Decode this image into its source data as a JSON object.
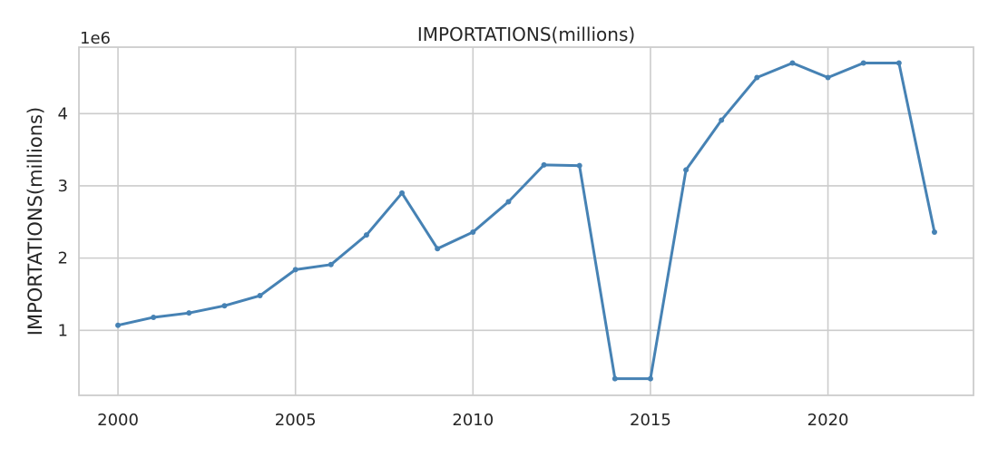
{
  "chart_data": {
    "type": "line",
    "title": "IMPORTATIONS(millions)",
    "xlabel": "",
    "ylabel": "IMPORTATIONS(millions)",
    "y_offset_label": "1e6",
    "y_scale_factor": 1000000,
    "xlim": [
      1998.9,
      2024.1
    ],
    "ylim": [
      100000,
      4920000
    ],
    "xticks": [
      2000,
      2005,
      2010,
      2015,
      2020
    ],
    "yticks": [
      1000000,
      2000000,
      3000000,
      4000000
    ],
    "grid": true,
    "line_color": "#4682b4",
    "series": [
      {
        "x": [
          2000,
          2001,
          2002,
          2003,
          2004,
          2005,
          2006,
          2007,
          2008,
          2009,
          2010,
          2011,
          2012,
          2013,
          2014,
          2015,
          2016,
          2017,
          2018,
          2019,
          2020,
          2021,
          2022,
          2023
        ],
        "values": [
          1070000,
          1180000,
          1240000,
          1340000,
          1480000,
          1840000,
          1910000,
          2320000,
          2900000,
          2130000,
          2360000,
          2780000,
          3290000,
          3280000,
          330000,
          330000,
          3220000,
          3910000,
          4500000,
          4700000,
          4500000,
          4700000,
          4700000,
          2360000
        ]
      }
    ]
  }
}
